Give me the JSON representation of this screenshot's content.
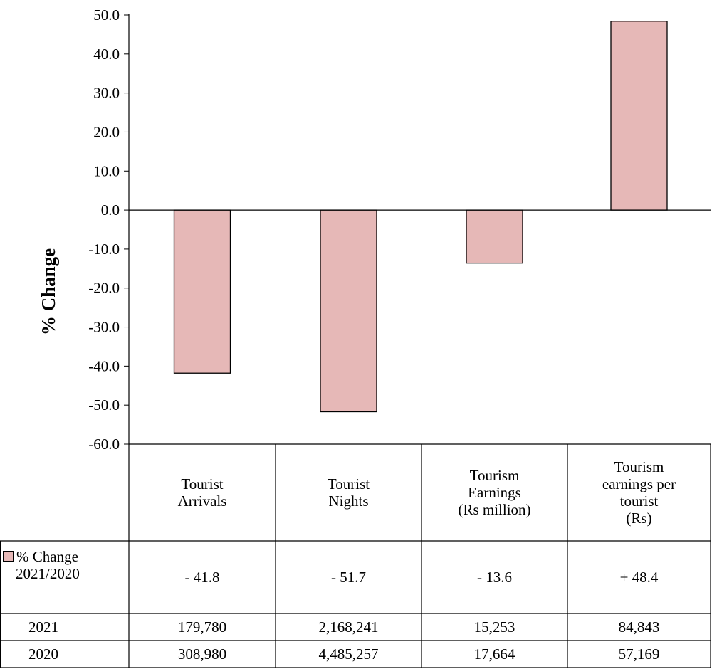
{
  "chart_data": {
    "type": "bar",
    "ylabel": "% Change",
    "ylim": [
      -60,
      50
    ],
    "y_tick_step": 10,
    "y_tick_labels": [
      "50.0",
      "40.0",
      "30.0",
      "20.0",
      "10.0",
      "0.0",
      "-10.0",
      "-20.0",
      "-30.0",
      "-40.0",
      "-50.0",
      "-60.0"
    ],
    "categories": [
      "Tourist\nArrivals",
      "Tourist\nNights",
      "Tourism\nEarnings\n(Rs million)",
      "Tourism\nearnings per\ntourist\n(Rs)"
    ],
    "series": [
      {
        "name": "% Change 2021/2020",
        "values": [
          -41.8,
          -51.7,
          -13.6,
          48.4
        ],
        "color": "#e6b8b7"
      }
    ],
    "grid": false,
    "legend": "in data table"
  },
  "table": {
    "legend_label_line1": "% Change",
    "legend_label_line2": "2021/2020",
    "change_labels": [
      "- 41.8",
      "- 51.7",
      "- 13.6",
      "+ 48.4"
    ],
    "rows": [
      {
        "label": "2021",
        "values": [
          "179,780",
          "2,168,241",
          "15,253",
          "84,843"
        ]
      },
      {
        "label": "2020",
        "values": [
          "308,980",
          "4,485,257",
          "17,664",
          "57,169"
        ]
      }
    ]
  }
}
